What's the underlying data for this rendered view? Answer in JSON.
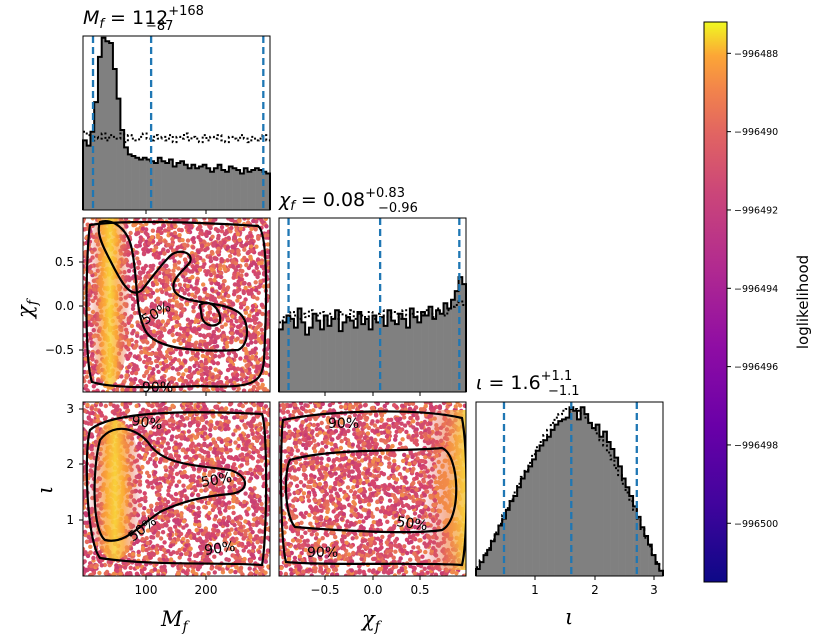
{
  "chart_data": [
    {
      "type": "histogram",
      "panel": "Mf-marginal",
      "title_main": "M",
      "title_sub_var": "f",
      "title_eq": " = 112",
      "title_sup": "+168",
      "title_sub": "−87",
      "xlim": [
        10,
        290
      ],
      "quantiles": [
        25,
        112,
        280
      ],
      "bins_solid": [
        0.4,
        0.37,
        0.45,
        0.62,
        0.88,
        0.99,
        0.97,
        0.96,
        0.81,
        0.64,
        0.46,
        0.36,
        0.32,
        0.31,
        0.3,
        0.29,
        0.3,
        0.29,
        0.28,
        0.27,
        0.3,
        0.28,
        0.27,
        0.29,
        0.25,
        0.27,
        0.28,
        0.26,
        0.24,
        0.26,
        0.24,
        0.25,
        0.26,
        0.24,
        0.22,
        0.24,
        0.26,
        0.23,
        0.22,
        0.25,
        0.24,
        0.23,
        0.21,
        0.24,
        0.22,
        0.23,
        0.24,
        0.23,
        0.22,
        0.21
      ],
      "bins_dotted": [
        0.45,
        0.43,
        0.4,
        0.42,
        0.41,
        0.44,
        0.4,
        0.43,
        0.42,
        0.41,
        0.44,
        0.39,
        0.43,
        0.41,
        0.4,
        0.42,
        0.44,
        0.41,
        0.4,
        0.43,
        0.41,
        0.42,
        0.4,
        0.43,
        0.39,
        0.42,
        0.41,
        0.44,
        0.4,
        0.42,
        0.41,
        0.39,
        0.43,
        0.4,
        0.42,
        0.41,
        0.43,
        0.4,
        0.39,
        0.42,
        0.41,
        0.4,
        0.43,
        0.41,
        0.39,
        0.42,
        0.4,
        0.41,
        0.43,
        0.4
      ]
    },
    {
      "type": "histogram",
      "panel": "chif-marginal",
      "title_main": "χ",
      "title_sub_var": "f",
      "title_eq": " = 0.08",
      "title_sup": "+0.83",
      "title_sub": "−0.96",
      "xlim": [
        -0.98,
        0.98
      ],
      "quantiles": [
        -0.88,
        0.08,
        0.91
      ],
      "bins_solid": [
        0.36,
        0.4,
        0.44,
        0.42,
        0.37,
        0.48,
        0.4,
        0.33,
        0.37,
        0.45,
        0.41,
        0.36,
        0.44,
        0.38,
        0.42,
        0.47,
        0.35,
        0.4,
        0.43,
        0.41,
        0.37,
        0.46,
        0.39,
        0.42,
        0.36,
        0.44,
        0.4,
        0.43,
        0.38,
        0.47,
        0.41,
        0.39,
        0.45,
        0.42,
        0.37,
        0.48,
        0.43,
        0.4,
        0.46,
        0.44,
        0.49,
        0.42,
        0.47,
        0.45,
        0.51,
        0.48,
        0.53,
        0.58,
        0.66,
        0.62
      ],
      "bins_dotted": [
        0.4,
        0.43,
        0.41,
        0.46,
        0.44,
        0.42,
        0.45,
        0.43,
        0.47,
        0.42,
        0.44,
        0.46,
        0.41,
        0.45,
        0.43,
        0.42,
        0.46,
        0.44,
        0.43,
        0.47,
        0.42,
        0.45,
        0.44,
        0.43,
        0.46,
        0.42,
        0.45,
        0.47,
        0.44,
        0.43,
        0.46,
        0.45,
        0.42,
        0.47,
        0.44,
        0.45,
        0.43,
        0.46,
        0.44,
        0.47,
        0.45,
        0.43,
        0.48,
        0.46,
        0.44,
        0.47,
        0.49,
        0.5,
        0.52,
        0.5
      ]
    },
    {
      "type": "histogram",
      "panel": "iota-marginal",
      "title_main": "ι",
      "title_sub_var": "",
      "title_eq": " = 1.6",
      "title_sup": "+1.1",
      "title_sub": "−1.1",
      "xlim": [
        0,
        3.14
      ],
      "quantiles": [
        0.47,
        1.6,
        2.7
      ],
      "bins_solid": [
        0.04,
        0.08,
        0.12,
        0.15,
        0.2,
        0.24,
        0.29,
        0.33,
        0.38,
        0.43,
        0.46,
        0.51,
        0.56,
        0.6,
        0.63,
        0.67,
        0.72,
        0.75,
        0.78,
        0.8,
        0.84,
        0.87,
        0.89,
        0.9,
        0.91,
        0.96,
        0.95,
        0.9,
        0.97,
        0.93,
        0.88,
        0.85,
        0.87,
        0.8,
        0.83,
        0.77,
        0.73,
        0.68,
        0.63,
        0.56,
        0.51,
        0.46,
        0.4,
        0.34,
        0.28,
        0.23,
        0.18,
        0.12,
        0.07,
        0.03
      ],
      "bins_dotted": [
        0.05,
        0.09,
        0.13,
        0.16,
        0.21,
        0.25,
        0.3,
        0.35,
        0.39,
        0.44,
        0.48,
        0.53,
        0.57,
        0.61,
        0.65,
        0.7,
        0.74,
        0.77,
        0.81,
        0.84,
        0.88,
        0.91,
        0.93,
        0.95,
        0.96,
        0.97,
        0.96,
        0.95,
        0.93,
        0.91,
        0.88,
        0.85,
        0.82,
        0.78,
        0.75,
        0.71,
        0.67,
        0.62,
        0.58,
        0.53,
        0.48,
        0.43,
        0.38,
        0.33,
        0.27,
        0.22,
        0.17,
        0.12,
        0.08,
        0.04
      ]
    },
    {
      "type": "scatter",
      "panel": "Mf-chif",
      "xlim": [
        10,
        290
      ],
      "ylim": [
        -0.98,
        0.98
      ],
      "contour_labels": [
        "50%",
        "90%"
      ]
    },
    {
      "type": "scatter",
      "panel": "Mf-iota",
      "xlim": [
        10,
        290
      ],
      "ylim": [
        0,
        3.14
      ],
      "contour_labels": [
        "90%",
        "50%",
        "50%",
        "90%"
      ]
    },
    {
      "type": "scatter",
      "panel": "chif-iota",
      "xlim": [
        -0.98,
        0.98
      ],
      "ylim": [
        0,
        3.14
      ],
      "contour_labels": [
        "90%",
        "50%",
        "90%"
      ]
    }
  ],
  "axes": {
    "xlabel_mf_main": "M",
    "xlabel_mf_sub": "f",
    "xlabel_chif_main": "χ",
    "xlabel_chif_sub": "f",
    "xlabel_iota": "ι",
    "ylabel_chif_main": "χ",
    "ylabel_chif_sub": "f",
    "ylabel_iota": "ι",
    "mf_ticks": [
      "100",
      "200"
    ],
    "chif_ticks": [
      "−0.5",
      "0.0",
      "0.5"
    ],
    "iota_ticks": [
      "1",
      "2",
      "3"
    ],
    "iota_x_ticks": [
      "1",
      "2",
      "3"
    ]
  },
  "colorbar": {
    "label": "loglikelihood",
    "colormap": "plasma",
    "range": [
      -996501.5,
      -996487.2
    ],
    "ticks": [
      "−996488",
      "−996490",
      "−996492",
      "−996494",
      "−996496",
      "−996498",
      "−996500"
    ]
  },
  "colors": {
    "hist_fill": "#808080",
    "quantile_line": "#1f77b4",
    "contour": "#000000"
  }
}
